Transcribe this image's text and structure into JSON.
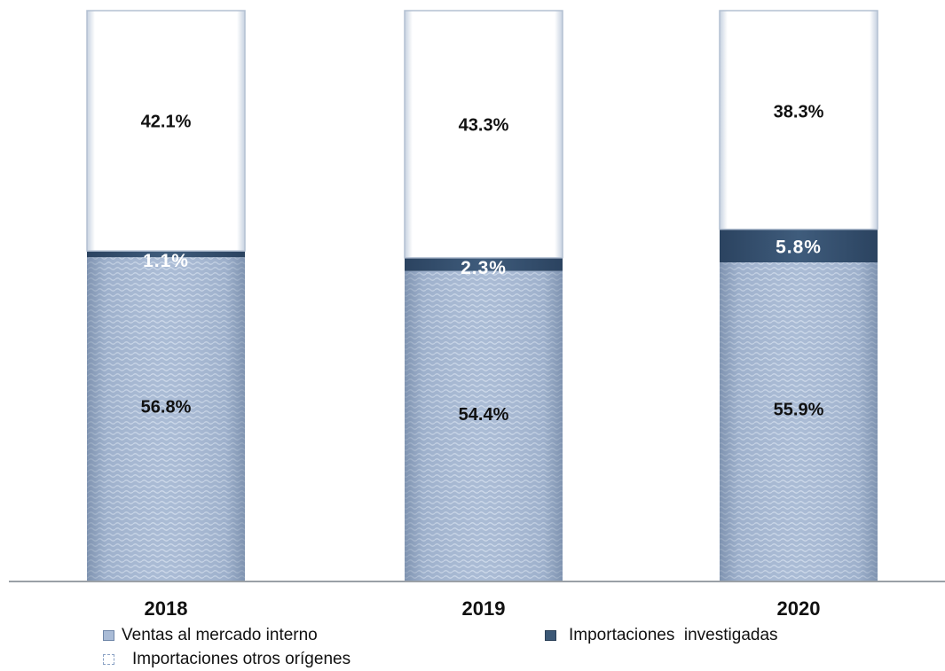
{
  "chart_data": {
    "type": "bar",
    "stacked": true,
    "percent": true,
    "categories": [
      "2018",
      "2019",
      "2020"
    ],
    "series": [
      {
        "name": "Ventas al mercado interno",
        "values": [
          56.8,
          54.4,
          55.9
        ],
        "labels": [
          "56.8%",
          "54.4%",
          "55.9%"
        ],
        "color": "#a9bbd6"
      },
      {
        "name": "Importaciones  investigadas",
        "values": [
          1.1,
          2.3,
          5.8
        ],
        "labels": [
          "1.1%",
          "2.3%",
          "5.8%"
        ],
        "color": "#3c5876"
      },
      {
        "name": "Importaciones otros orígenes",
        "values": [
          42.1,
          43.3,
          38.3
        ],
        "labels": [
          "42.1%",
          "43.3%",
          "38.3%"
        ],
        "color": "#ffffff"
      }
    ],
    "ylim": [
      0,
      100
    ],
    "grid": false,
    "legend_position": "bottom"
  }
}
